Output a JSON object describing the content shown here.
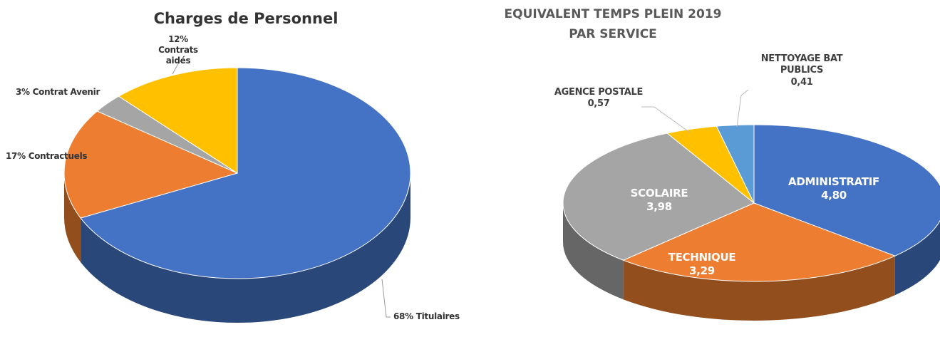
{
  "chart_data": [
    {
      "type": "pie3d",
      "title": "Charges de Personnel",
      "values": [
        68,
        17,
        3,
        12
      ],
      "value_labels": [
        "68% Titulaires",
        "17% Contractuels",
        "3% Contrat Avenir",
        "12% Contrats aidés"
      ],
      "colors": [
        "#4472c4",
        "#ed7d31",
        "#a5a5a5",
        "#ffc000"
      ]
    },
    {
      "type": "pie3d",
      "title": "EQUIVALENT TEMPS PLEIN 2019 PAR SERVICE",
      "categories": [
        "ADMINISTRATIF",
        "TECHNIQUE",
        "SCOLAIRE",
        "AGENCE POSTALE",
        "NETTOYAGE BAT PUBLICS"
      ],
      "values": [
        4.8,
        3.29,
        3.98,
        0.57,
        0.41
      ],
      "value_labels": [
        "4,80",
        "3,29",
        "3,98",
        "0,57",
        "0,41"
      ],
      "colors": [
        "#4472c4",
        "#ed7d31",
        "#a5a5a5",
        "#ffc000",
        "#5b9bd5"
      ]
    }
  ]
}
